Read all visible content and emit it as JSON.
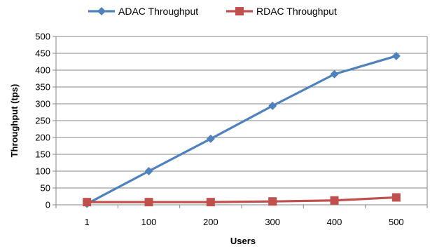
{
  "chart_data": {
    "type": "line",
    "categories": [
      "1",
      "100",
      "200",
      "300",
      "400",
      "500"
    ],
    "series": [
      {
        "name": "ADAC Throughput",
        "values": [
          3,
          100,
          196,
          294,
          388,
          442
        ],
        "color": "#4f81bd",
        "marker": "diamond"
      },
      {
        "name": "RDAC Throughput",
        "values": [
          8,
          8,
          8,
          10,
          13,
          22
        ],
        "color": "#c0504d",
        "marker": "square"
      }
    ],
    "xlabel": "Users",
    "ylabel": "Throughput (tps)",
    "ylim": [
      0,
      500
    ],
    "yticks": [
      "0",
      "50",
      "100",
      "150",
      "200",
      "250",
      "300",
      "350",
      "400",
      "450",
      "500"
    ],
    "grid": true,
    "legend": "top"
  }
}
